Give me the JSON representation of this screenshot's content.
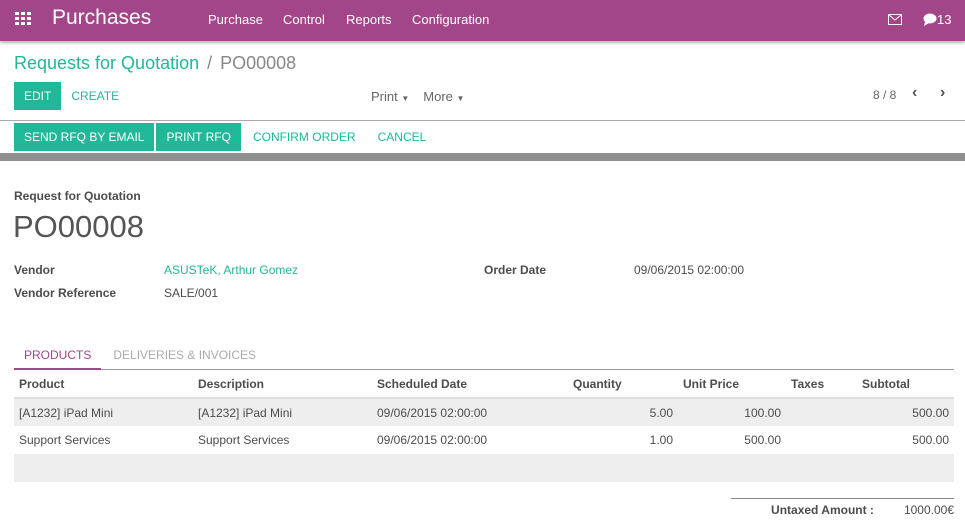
{
  "navbar": {
    "app_title": "Purchases",
    "menu": [
      "Purchase",
      "Control",
      "Reports",
      "Configuration"
    ],
    "messages_count": "13",
    "color": "#a24689"
  },
  "breadcrumb": {
    "parent": "Requests for Quotation",
    "separator": "/",
    "current": "PO00008"
  },
  "toolbar": {
    "edit": "EDIT",
    "create": "CREATE",
    "print": "Print",
    "more": "More",
    "pager": "8 / 8"
  },
  "statusbar": {
    "send_rfq": "SEND RFQ BY EMAIL",
    "print_rfq": "PRINT RFQ",
    "confirm": "CONFIRM ORDER",
    "cancel": "CANCEL"
  },
  "form": {
    "subtitle": "Request for Quotation",
    "name": "PO00008",
    "vendor_label": "Vendor",
    "vendor": "ASUSTeK, Arthur Gomez",
    "vendor_ref_label": "Vendor Reference",
    "vendor_ref": "SALE/001",
    "order_date_label": "Order Date",
    "order_date": "09/06/2015 02:00:00"
  },
  "tabs": [
    "PRODUCTS",
    "DELIVERIES & INVOICES"
  ],
  "table": {
    "headers": [
      "Product",
      "Description",
      "Scheduled Date",
      "Quantity",
      "Unit Price",
      "Taxes",
      "Subtotal"
    ],
    "rows": [
      [
        "[A1232] iPad Mini",
        "[A1232] iPad Mini",
        "09/06/2015 02:00:00",
        "5.00",
        "100.00",
        "",
        "500.00"
      ],
      [
        "Support Services",
        "Support Services",
        "09/06/2015 02:00:00",
        "1.00",
        "500.00",
        "",
        "500.00"
      ]
    ]
  },
  "totals": {
    "untaxed_label": "Untaxed Amount :",
    "untaxed": "1000.00€"
  },
  "accent": "#21b799"
}
